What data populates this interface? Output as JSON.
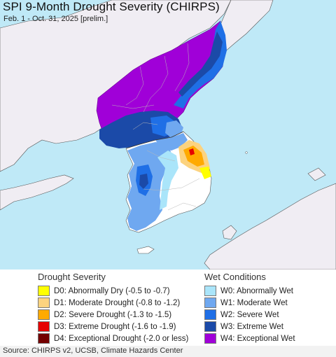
{
  "title": "SPI 9-Month Drought Severity (CHIRPS)",
  "subtitle": "Feb. 1 - Oct. 31, 2025 [prelim.]",
  "colors": {
    "ocean": "#bfe9f7",
    "land_other": "#f0edf3",
    "normal": "#ffffff",
    "D0": "#ffff00",
    "D1": "#fcd37f",
    "D2": "#ffaa00",
    "D3": "#e60000",
    "D4": "#730000",
    "W0": "#aae5fa",
    "W1": "#6fa8f0",
    "W2": "#1f6fe6",
    "W3": "#1b4aa8",
    "W4": "#a000d8"
  },
  "legend": {
    "drought": {
      "heading": "Drought Severity",
      "items": [
        {
          "code": "D0",
          "label": "D0: Abnormally Dry (-0.5 to -0.7)"
        },
        {
          "code": "D1",
          "label": "D1: Moderate Drought (-0.8 to -1.2)"
        },
        {
          "code": "D2",
          "label": "D2: Severe Drought (-1.3 to -1.5)"
        },
        {
          "code": "D3",
          "label": "D3: Extreme Drought (-1.6 to -1.9)"
        },
        {
          "code": "D4",
          "label": "D4: Exceptional Drought (-2.0 or less)"
        }
      ]
    },
    "wet": {
      "heading": "Wet Conditions",
      "items": [
        {
          "code": "W0",
          "label": "W0: Abnormally Wet"
        },
        {
          "code": "W1",
          "label": "W1: Moderate Wet"
        },
        {
          "code": "W2",
          "label": "W2: Severe Wet"
        },
        {
          "code": "W3",
          "label": "W3: Extreme Wet"
        },
        {
          "code": "W4",
          "label": "W4: Exceptional Wet"
        }
      ]
    }
  },
  "source": "Source: CHIRPS v2, UCSB, Climate Hazards Center"
}
